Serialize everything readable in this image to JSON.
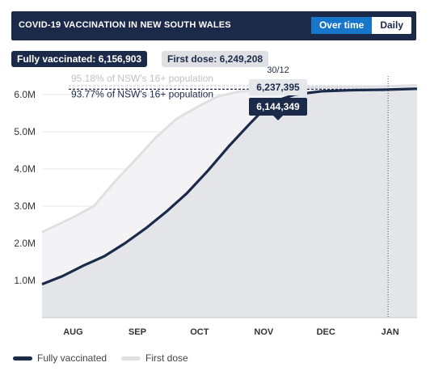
{
  "header": {
    "title": "COVID-19 VACCINATION IN NEW SOUTH WALES",
    "toggle": [
      {
        "label": "Over time",
        "active": true
      },
      {
        "label": "Daily",
        "active": false
      }
    ]
  },
  "badges": {
    "fully_vaccinated": "Fully vaccinated: 6,156,903",
    "first_dose": "First dose: 6,249,208"
  },
  "colors": {
    "navy": "#1c2a4a",
    "light": "#dfe0e4",
    "accent": "#1776c9"
  },
  "chart_data": {
    "type": "area",
    "xlabel": "",
    "ylabel": "",
    "x_ticks": [
      "AUG",
      "SEP",
      "OCT",
      "NOV",
      "DEC",
      "JAN"
    ],
    "x_tick_days": [
      15,
      46,
      76,
      107,
      137,
      168
    ],
    "x_range_days": [
      0,
      181
    ],
    "ylim": [
      0,
      6500000
    ],
    "y_ticks": [
      {
        "value": 1000000,
        "label": "1.0M"
      },
      {
        "value": 2000000,
        "label": "2.0M"
      },
      {
        "value": 3000000,
        "label": "3.0M"
      },
      {
        "value": 4000000,
        "label": "4.0M"
      },
      {
        "value": 5000000,
        "label": "5.0M"
      },
      {
        "value": 6000000,
        "label": "6.0M"
      }
    ],
    "grid": true,
    "series": [
      {
        "name": "First dose",
        "color": "#dfe0e4",
        "points": [
          [
            0,
            2300000
          ],
          [
            15,
            2700000
          ],
          [
            25,
            3000000
          ],
          [
            35,
            3650000
          ],
          [
            46,
            4300000
          ],
          [
            55,
            4850000
          ],
          [
            65,
            5350000
          ],
          [
            76,
            5700000
          ],
          [
            85,
            5950000
          ],
          [
            95,
            6080000
          ],
          [
            107,
            6140000
          ],
          [
            120,
            6180000
          ],
          [
            135,
            6200000
          ],
          [
            150,
            6210000
          ],
          [
            165,
            6220000
          ],
          [
            181,
            6249208
          ]
        ]
      },
      {
        "name": "Fully vaccinated",
        "color": "#1c2a4a",
        "points": [
          [
            0,
            900000
          ],
          [
            10,
            1120000
          ],
          [
            20,
            1400000
          ],
          [
            30,
            1650000
          ],
          [
            40,
            2000000
          ],
          [
            50,
            2400000
          ],
          [
            60,
            2850000
          ],
          [
            70,
            3350000
          ],
          [
            80,
            3950000
          ],
          [
            90,
            4600000
          ],
          [
            100,
            5200000
          ],
          [
            107,
            5600000
          ],
          [
            114,
            5850000
          ],
          [
            122,
            6000000
          ],
          [
            135,
            6090000
          ],
          [
            150,
            6120000
          ],
          [
            165,
            6130000
          ],
          [
            181,
            6156903
          ]
        ]
      }
    ],
    "reference_lines": [
      {
        "value": 6237395,
        "label": "95.18% of NSW's 16+ population",
        "color": "#c9cbd0"
      },
      {
        "value": 6144349,
        "label": "93.77% of NSW's 16+ population",
        "color": "#1c2a4a"
      }
    ],
    "tooltip": {
      "date": "30/12",
      "first_dose_value": "6,237,395",
      "fully_vaccinated_value": "6,144,349",
      "x_day": 167
    }
  }
}
